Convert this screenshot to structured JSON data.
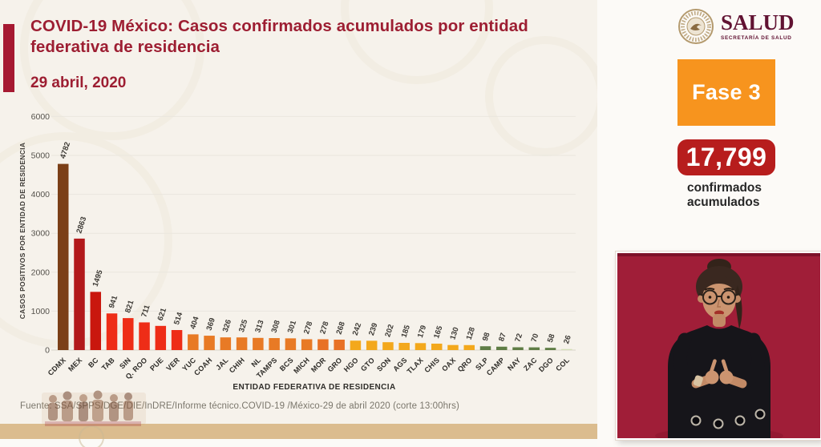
{
  "header": {
    "title": "COVID-19 México: Casos confirmados acumulados por entidad federativa de residencia",
    "date": "29 abril, 2020",
    "title_color": "#9D1E32",
    "accent_color": "#A61931"
  },
  "logo": {
    "name": "SALUD",
    "subtitle": "SECRETARÍA DE SALUD",
    "color": "#611232"
  },
  "status": {
    "phase_label": "Fase 3",
    "phase_bg": "#F7941E",
    "total": "17,799",
    "total_bg": "#B71D1D",
    "caption_line1": "confirmados",
    "caption_line2": "acumulados"
  },
  "chart_data": {
    "type": "bar",
    "title": "",
    "xlabel": "ENTIDAD FEDERATIVA DE RESIDENCIA",
    "ylabel": "CASOS POSITIVOS POR ENTIDAD DE RESIDENCIA",
    "ylim": [
      0,
      6000
    ],
    "yticks": [
      0,
      1000,
      2000,
      3000,
      4000,
      5000,
      6000
    ],
    "grid": true,
    "legend": false,
    "value_labels": true,
    "categories": [
      "CDMX",
      "MEX",
      "BC",
      "TAB",
      "SIN",
      "Q. ROO",
      "PUE",
      "VER",
      "YUC",
      "COAH",
      "JAL",
      "CHIH",
      "NL",
      "TAMPS",
      "BCS",
      "MICH",
      "MOR",
      "GRO",
      "HGO",
      "GTO",
      "SON",
      "AGS",
      "TLAX",
      "CHIS",
      "OAX",
      "QRO",
      "SLP",
      "CAMP",
      "NAY",
      "ZAC",
      "DGO",
      "COL"
    ],
    "values": [
      4782,
      2863,
      1495,
      941,
      821,
      711,
      621,
      514,
      404,
      369,
      326,
      325,
      313,
      308,
      301,
      278,
      278,
      268,
      242,
      239,
      202,
      185,
      179,
      165,
      130,
      128,
      98,
      87,
      72,
      70,
      58,
      26
    ],
    "bar_colors": [
      "#7B3F17",
      "#B2191B",
      "#C9170E",
      "#EE2D17",
      "#EE2D17",
      "#EE2D17",
      "#EE2D17",
      "#EE2D17",
      "#E87A25",
      "#E87A25",
      "#E87A25",
      "#E87A25",
      "#E87A25",
      "#E87A25",
      "#E87A25",
      "#E87A25",
      "#E87125",
      "#E87125",
      "#F3A81C",
      "#F3A81C",
      "#F3A81C",
      "#F3A81C",
      "#F3A81C",
      "#F3A81C",
      "#F3A81C",
      "#F3A81C",
      "#5F7D45",
      "#5F7D45",
      "#5F7D45",
      "#5F7D45",
      "#5F7D45",
      "#D4DFB6"
    ]
  },
  "footer": {
    "source": "Fuente: SSA/SPPS/DGE/DIE/InDRE/Informe técnico.COVID-19 /México-29 de abril 2020 (corte 13:00hrs)"
  },
  "video": {
    "label": "sign-language-interpreter",
    "bg": "#A01E38"
  },
  "decor": {
    "band_color": "#DBBC8E",
    "background": "#F6F2EB"
  }
}
